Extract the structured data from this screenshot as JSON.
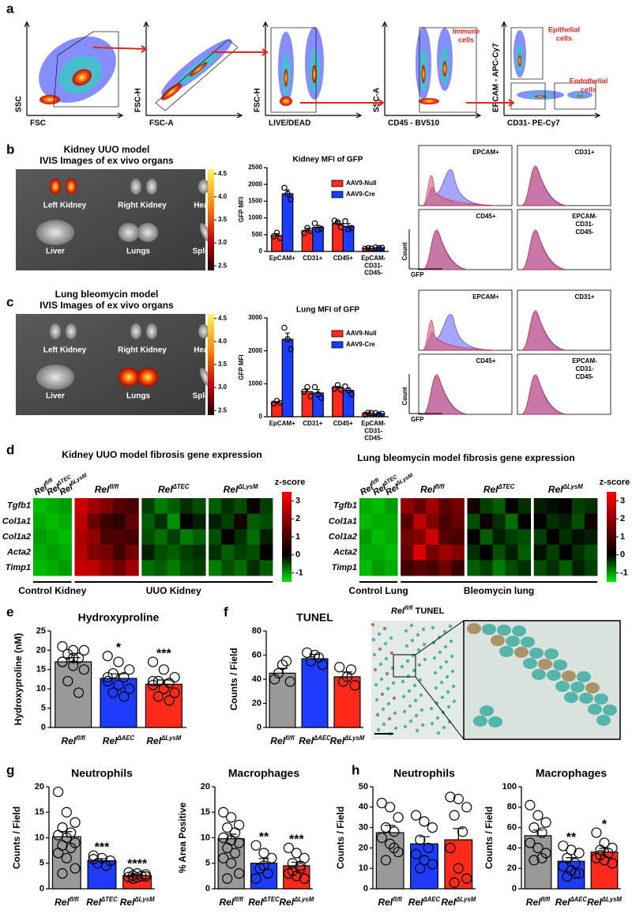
{
  "panels": {
    "a": {
      "letter": "a",
      "plots": [
        {
          "y": "SSC",
          "x": "FSC"
        },
        {
          "y": "FSC-H",
          "x": "FSC-A"
        },
        {
          "y": "FSC-H",
          "x": "LIVE/DEAD"
        },
        {
          "y": "SSC-A",
          "x": "CD45 - BV510"
        },
        {
          "y": "EPCAM - APC-Cy7",
          "x": "CD31- PE-Cy7"
        }
      ],
      "gates": [
        [
          "Immune",
          "cells"
        ],
        [
          "Epithelial",
          "cells"
        ],
        [
          "Endothelial",
          "cells"
        ]
      ]
    },
    "b": {
      "letter": "b",
      "title": [
        "Kidney UUO model",
        "IVIS Images of ex vivo organs"
      ],
      "organs": [
        "Left Kidney",
        "Right Kidney",
        "Heart",
        "Liver",
        "Lungs",
        "Spleen"
      ],
      "colorbar_lim": [
        2.4,
        4.6
      ],
      "colorbar_ticks": [
        4.5,
        {
          "value": 4,
          "label": "4.0"
        },
        3.5,
        {
          "value": 3,
          "label": "3.0"
        },
        2.5
      ],
      "histograms": [
        [
          "EPCAM+"
        ],
        [
          "CD31+"
        ],
        [
          "CD45+"
        ],
        [
          "EPCAM-",
          "CD31-",
          "CD45-"
        ]
      ],
      "hist_ylabel": "Count",
      "hist_xlabel": "GFP"
    },
    "c": {
      "letter": "c",
      "title": [
        "Lung bleomycin model",
        "IVIS Images of ex vivo organs"
      ],
      "organs": [
        "Left Kidney",
        "Right Kidney",
        "Heart",
        "Liver",
        "Lungs",
        "Spleen"
      ],
      "colorbar_lim": [
        2.4,
        4.6
      ],
      "colorbar_ticks": [
        4.5,
        {
          "value": 4,
          "label": "4.0"
        },
        3.5,
        {
          "value": 3,
          "label": "3.0"
        },
        2.5
      ],
      "histograms": [
        [
          "EPCAM+"
        ],
        [
          "CD31+"
        ],
        [
          "CD45+"
        ],
        [
          "EPCAM-",
          "CD31-",
          "CD45-"
        ]
      ],
      "hist_ylabel": "Count",
      "hist_xlabel": "GFP"
    },
    "d": {
      "letter": "d"
    },
    "e": {
      "letter": "e"
    },
    "f": {
      "letter": "f",
      "image_label": {
        "text": "Rel",
        "sup": "fl/fl",
        "rest": " TUNEL"
      }
    },
    "g": {
      "letter": "g"
    },
    "h": {
      "letter": "h"
    }
  },
  "chart_data": [
    {
      "type": "bar",
      "title": "Kidney MFI of GFP",
      "ylabel": "GFP MFI",
      "categories": [
        [
          "EpCAM+"
        ],
        [
          "CD31+"
        ],
        [
          "CD45+"
        ],
        [
          "EpCAM-",
          "CD31-",
          "CD45-"
        ]
      ],
      "ylim": [
        0,
        2500
      ],
      "yticks": [
        0,
        500,
        1000,
        1500,
        2000,
        2500
      ],
      "series": [
        {
          "name": "AAV9-Null",
          "color": "#ff2a1a",
          "values": [
            470,
            620,
            830,
            90
          ],
          "errors": [
            60,
            70,
            60,
            10
          ],
          "points": [
            [
              450,
              560,
              400
            ],
            [
              550,
              700,
              610
            ],
            [
              920,
              870,
              720
            ],
            [
              80,
              100,
              90
            ]
          ]
        },
        {
          "name": "AAV9-Cre",
          "color": "#1c3cff",
          "values": [
            1720,
            720,
            750,
            110
          ],
          "errors": [
            110,
            60,
            80,
            10
          ],
          "points": [
            [
              1900,
              1720,
              1550
            ],
            [
              840,
              650,
              680
            ],
            [
              900,
              660,
              700
            ],
            [
              120,
              100,
              110
            ]
          ]
        }
      ]
    },
    {
      "type": "bar",
      "title": "Lung MFI of GFP",
      "ylabel": "GFP MFI",
      "categories": [
        [
          "EpCAM+"
        ],
        [
          "CD31+"
        ],
        [
          "CD45+"
        ],
        [
          "EpCAM-",
          "CD31-",
          "CD45-"
        ]
      ],
      "ylim": [
        0,
        3000
      ],
      "yticks": [
        0,
        1000,
        2000,
        3000
      ],
      "series": [
        {
          "name": "AAV9-Null",
          "color": "#ff2a1a",
          "values": [
            430,
            760,
            880,
            100
          ],
          "errors": [
            30,
            80,
            40,
            20
          ],
          "points": [
            [
              400,
              480,
              420
            ],
            [
              760,
              900,
              620
            ],
            [
              850,
              960,
              820
            ],
            [
              60,
              120,
              110
            ]
          ]
        },
        {
          "name": "AAV9-Cre",
          "color": "#1c3cff",
          "values": [
            2350,
            720,
            800,
            90
          ],
          "errors": [
            190,
            100,
            70,
            15
          ],
          "points": [
            [
              2700,
              2350,
              2050
            ],
            [
              900,
              680,
              570
            ],
            [
              920,
              800,
              680
            ],
            [
              110,
              70,
              90
            ]
          ]
        }
      ]
    },
    {
      "type": "heatmap",
      "title": "Kidney UUO model fibrosis gene expression",
      "rows": [
        "Tgfb1",
        "Col1a1",
        "Col1a2",
        "Acta2",
        "Timp1"
      ],
      "control_headers": [
        {
          "text": "Rel",
          "sup": "fl/fl"
        },
        {
          "text": "Rel",
          "sup": "ΔTEC"
        },
        {
          "text": "Rel",
          "sup": "ΔLysM"
        }
      ],
      "group_headers": [
        {
          "text": "Rel",
          "sup": "fl/fl"
        },
        {
          "text": "Rel",
          "sup": "ΔTEC"
        },
        {
          "text": "Rel",
          "sup": "ΔLysM"
        }
      ],
      "bottom_labels": [
        "Control Kidney",
        "UUO Kidney"
      ],
      "zlabel": "z-score",
      "zlim": [
        -1.5,
        3.5
      ],
      "zticks": [
        3,
        2,
        1,
        0,
        -1
      ],
      "values": [
        [
          [
            -1.2,
            -1.1,
            -1.0
          ],
          [
            -1.1,
            -1.2,
            -1.1
          ],
          [
            -1.0,
            -1.1,
            -1.2
          ],
          [
            -1.1,
            -1.0,
            -1.1
          ],
          [
            -1.2,
            -1.1,
            -1.0
          ]
        ],
        [
          [
            2.8,
            2.2,
            1.8,
            1.2,
            1.0
          ],
          [
            2.6,
            1.5,
            0.8,
            0.6,
            1.4
          ],
          [
            2.4,
            2.0,
            1.0,
            1.1,
            0.9
          ],
          [
            2.5,
            1.8,
            1.6,
            0.9,
            1.6
          ],
          [
            2.7,
            2.6,
            2.0,
            1.5,
            2.2
          ]
        ],
        [
          [
            -0.4,
            -0.8,
            -0.6,
            -0.3,
            -0.5
          ],
          [
            -0.6,
            -0.3,
            -0.9,
            0.1,
            -0.2
          ],
          [
            -0.5,
            -0.7,
            -0.4,
            -0.8,
            -0.6
          ],
          [
            -0.2,
            -0.5,
            -0.6,
            -0.4,
            -0.3
          ],
          [
            -0.7,
            -0.6,
            -0.8,
            -0.5,
            -0.4
          ]
        ],
        [
          [
            -0.6,
            -0.3,
            -0.5,
            0.2,
            -0.4
          ],
          [
            -0.2,
            -0.4,
            0.3,
            -0.6,
            -0.5
          ],
          [
            -0.5,
            0.0,
            -0.3,
            -0.7,
            -0.2
          ],
          [
            -0.3,
            -0.6,
            -0.4,
            -0.5,
            0.1
          ],
          [
            -0.8,
            -0.5,
            -0.7,
            -0.3,
            -0.6
          ]
        ]
      ]
    },
    {
      "type": "heatmap",
      "title": "Lung bleomycin model fibrosis gene expression",
      "rows": [
        "Tgfb1",
        "Col1a1",
        "Col1a2",
        "Acta2",
        "Timp1"
      ],
      "control_headers": [
        {
          "text": "Rel",
          "sup": "fl/fl"
        },
        {
          "text": "Rel",
          "sup": "ΔTEC"
        },
        {
          "text": "Rel",
          "sup": "ΔLysM"
        }
      ],
      "group_headers": [
        {
          "text": "Rel",
          "sup": "fl/fl"
        },
        {
          "text": "Rel",
          "sup": "ΔTEC"
        },
        {
          "text": "Rel",
          "sup": "ΔLysM"
        }
      ],
      "bottom_labels": [
        "Control Lung",
        "Bleomycin lung"
      ],
      "zlabel": "z-score",
      "zlim": [
        -1.5,
        3.5
      ],
      "zticks": [
        3,
        2,
        1,
        0,
        -1
      ],
      "values": [
        [
          [
            -1.1,
            -1.2,
            -1.0
          ],
          [
            -1.2,
            -1.1,
            -1.1
          ],
          [
            -1.0,
            -1.2,
            -1.1
          ],
          [
            -1.1,
            -1.1,
            -1.2
          ],
          [
            -1.2,
            -1.0,
            -1.1
          ]
        ],
        [
          [
            2.0,
            1.4,
            2.2,
            1.2,
            1.6
          ],
          [
            1.2,
            2.6,
            1.8,
            1.0,
            1.4
          ],
          [
            1.6,
            1.8,
            2.8,
            1.2,
            1.0
          ],
          [
            1.4,
            3.0,
            1.6,
            2.2,
            1.8
          ],
          [
            0.9,
            1.2,
            1.0,
            1.5,
            0.8
          ]
        ],
        [
          [
            0.3,
            -0.4,
            -0.6,
            0.0,
            -0.3
          ],
          [
            -0.5,
            0.2,
            -0.3,
            -0.7,
            0.0
          ],
          [
            0.1,
            -0.6,
            -0.2,
            -0.4,
            -0.5
          ],
          [
            -0.3,
            0.0,
            -0.5,
            -0.2,
            -0.6
          ],
          [
            -0.6,
            -0.4,
            -0.8,
            -0.5,
            -0.3
          ]
        ],
        [
          [
            -0.2,
            -0.1,
            0.1,
            -0.4,
            -0.3
          ],
          [
            0.0,
            -0.3,
            -0.2,
            -0.5,
            0.2
          ],
          [
            -0.4,
            0.1,
            -0.3,
            -0.1,
            -0.2
          ],
          [
            -0.1,
            -0.4,
            0.0,
            -0.3,
            -0.5
          ],
          [
            -0.5,
            -0.3,
            -0.6,
            -0.2,
            -0.4
          ]
        ]
      ]
    },
    {
      "type": "bar",
      "title": "Hydroxyproline",
      "ylabel": "Hydroxyproline (nM)",
      "categories": [
        {
          "text": "Rel",
          "sup": "fl/fl"
        },
        {
          "text": "Rel",
          "sup": "ΔAEC"
        },
        {
          "text": "Rel",
          "sup": "ΔLysM"
        }
      ],
      "ylim": [
        0,
        25
      ],
      "yticks": [
        0,
        5,
        10,
        15,
        20,
        25
      ],
      "colors": [
        "#999999",
        "#1c3cff",
        "#ff2a1a"
      ],
      "values": [
        17,
        12.7,
        11.2
      ],
      "errors": [
        1.1,
        1.2,
        1.1
      ],
      "points": [
        [
          21,
          20,
          20,
          19,
          18,
          17,
          16,
          15,
          12,
          9,
          17,
          18
        ],
        [
          18.5,
          17,
          15,
          14,
          13,
          12,
          11,
          10,
          9,
          8,
          13
        ],
        [
          17,
          15,
          13,
          12,
          11.5,
          11,
          10,
          9,
          8,
          7,
          12
        ]
      ],
      "significance": [
        null,
        "*",
        "***"
      ]
    },
    {
      "type": "bar",
      "title": "TUNEL",
      "ylabel": "Counts / Field",
      "categories": [
        {
          "text": "Rel",
          "sup": "fl/fl"
        },
        {
          "text": "Rel",
          "sup": "ΔAEC"
        },
        {
          "text": "Rel",
          "sup": "ΔLysM"
        }
      ],
      "ylim": [
        0,
        80
      ],
      "yticks": [
        0,
        20,
        40,
        60,
        80
      ],
      "colors": [
        "#999999",
        "#1c3cff",
        "#ff2a1a"
      ],
      "values": [
        45,
        57,
        42
      ],
      "errors": [
        4,
        3.5,
        4
      ],
      "points": [
        [
          40,
          52,
          38,
          45,
          55
        ],
        [
          62,
          60,
          52,
          55,
          58
        ],
        [
          50,
          42,
          35,
          38,
          48
        ]
      ],
      "significance": [
        null,
        null,
        null
      ]
    },
    {
      "type": "bar",
      "title": "Neutrophils",
      "ylabel": "Counts / Field",
      "categories": [
        {
          "text": "Rel",
          "sup": "fl/fl"
        },
        {
          "text": "Rel",
          "sup": "ΔTEC"
        },
        {
          "text": "Rel",
          "sup": "ΔLysM"
        }
      ],
      "ylim": [
        0,
        20
      ],
      "yticks": [
        0,
        5,
        10,
        15,
        20
      ],
      "colors": [
        "#999999",
        "#1c3cff",
        "#ff2a1a"
      ],
      "values": [
        10.2,
        5.5,
        2.6
      ],
      "errors": [
        1,
        0.4,
        0.15
      ],
      "points": [
        [
          19,
          15,
          13,
          12,
          11,
          10.5,
          10,
          9,
          8.5,
          8,
          7,
          6,
          4,
          3
        ],
        [
          6.5,
          6,
          5.5,
          5,
          4.5,
          5.8
        ],
        [
          3.2,
          3,
          2.8,
          2.6,
          2.5,
          2.3,
          2.2,
          2.4,
          2
        ]
      ],
      "significance": [
        null,
        "***",
        "****"
      ]
    },
    {
      "type": "bar",
      "title": "Macrophages",
      "ylabel": "% Area Positive",
      "categories": [
        {
          "text": "Rel",
          "sup": "fl/fl"
        },
        {
          "text": "Rel",
          "sup": "ΔTEC"
        },
        {
          "text": "Rel",
          "sup": "ΔLysM"
        }
      ],
      "ylim": [
        0,
        20
      ],
      "yticks": [
        0,
        5,
        10,
        15,
        20
      ],
      "colors": [
        "#999999",
        "#1c3cff",
        "#ff2a1a"
      ],
      "values": [
        9.8,
        5.0,
        4.5
      ],
      "errors": [
        0.9,
        0.9,
        0.7
      ],
      "points": [
        [
          15,
          14,
          12.5,
          12,
          11,
          10,
          9.5,
          9,
          8,
          7,
          6,
          5,
          3,
          2
        ],
        [
          8.5,
          7,
          6,
          4,
          3,
          2,
          4.5
        ],
        [
          8,
          7,
          6,
          5,
          4,
          3,
          2.5,
          2,
          3.5,
          4.5
        ]
      ],
      "significance": [
        null,
        "**",
        "***"
      ]
    },
    {
      "type": "bar",
      "title": "Neutrophils",
      "ylabel": "Counts / Field",
      "categories": [
        {
          "text": "Rel",
          "sup": "fl/fl"
        },
        {
          "text": "Rel",
          "sup": "ΔAEC"
        },
        {
          "text": "Rel",
          "sup": "ΔLysM"
        }
      ],
      "ylim": [
        0,
        50
      ],
      "yticks": [
        0,
        10,
        20,
        30,
        40,
        50
      ],
      "colors": [
        "#999999",
        "#1c3cff",
        "#ff2a1a"
      ],
      "values": [
        27.5,
        22,
        24
      ],
      "errors": [
        3.5,
        3.5,
        5.5
      ],
      "points": [
        [
          42,
          40,
          35,
          30,
          28,
          25,
          22,
          18,
          14,
          20
        ],
        [
          36,
          33,
          30,
          24,
          20,
          17,
          14,
          12,
          10
        ],
        [
          45,
          44,
          40,
          36,
          28,
          20,
          10,
          5,
          3
        ]
      ],
      "significance": [
        null,
        null,
        null
      ]
    },
    {
      "type": "bar",
      "title": "Macrophages",
      "ylabel": "Counts / Field",
      "categories": [
        {
          "text": "Rel",
          "sup": "fl/fl"
        },
        {
          "text": "Rel",
          "sup": "ΔAEC"
        },
        {
          "text": "Rel",
          "sup": "ΔLysM"
        }
      ],
      "ylim": [
        0,
        100
      ],
      "yticks": [
        0,
        20,
        40,
        60,
        80,
        100
      ],
      "colors": [
        "#999999",
        "#1c3cff",
        "#ff2a1a"
      ],
      "values": [
        52,
        27,
        36
      ],
      "errors": [
        5.5,
        3.5,
        3.5
      ],
      "points": [
        [
          82,
          72,
          65,
          60,
          55,
          45,
          40,
          35,
          28,
          30
        ],
        [
          42,
          38,
          35,
          30,
          25,
          22,
          18,
          15,
          12,
          15
        ],
        [
          55,
          45,
          40,
          38,
          35,
          30,
          28,
          25,
          33
        ]
      ],
      "significance": [
        null,
        "**",
        "*"
      ]
    }
  ]
}
